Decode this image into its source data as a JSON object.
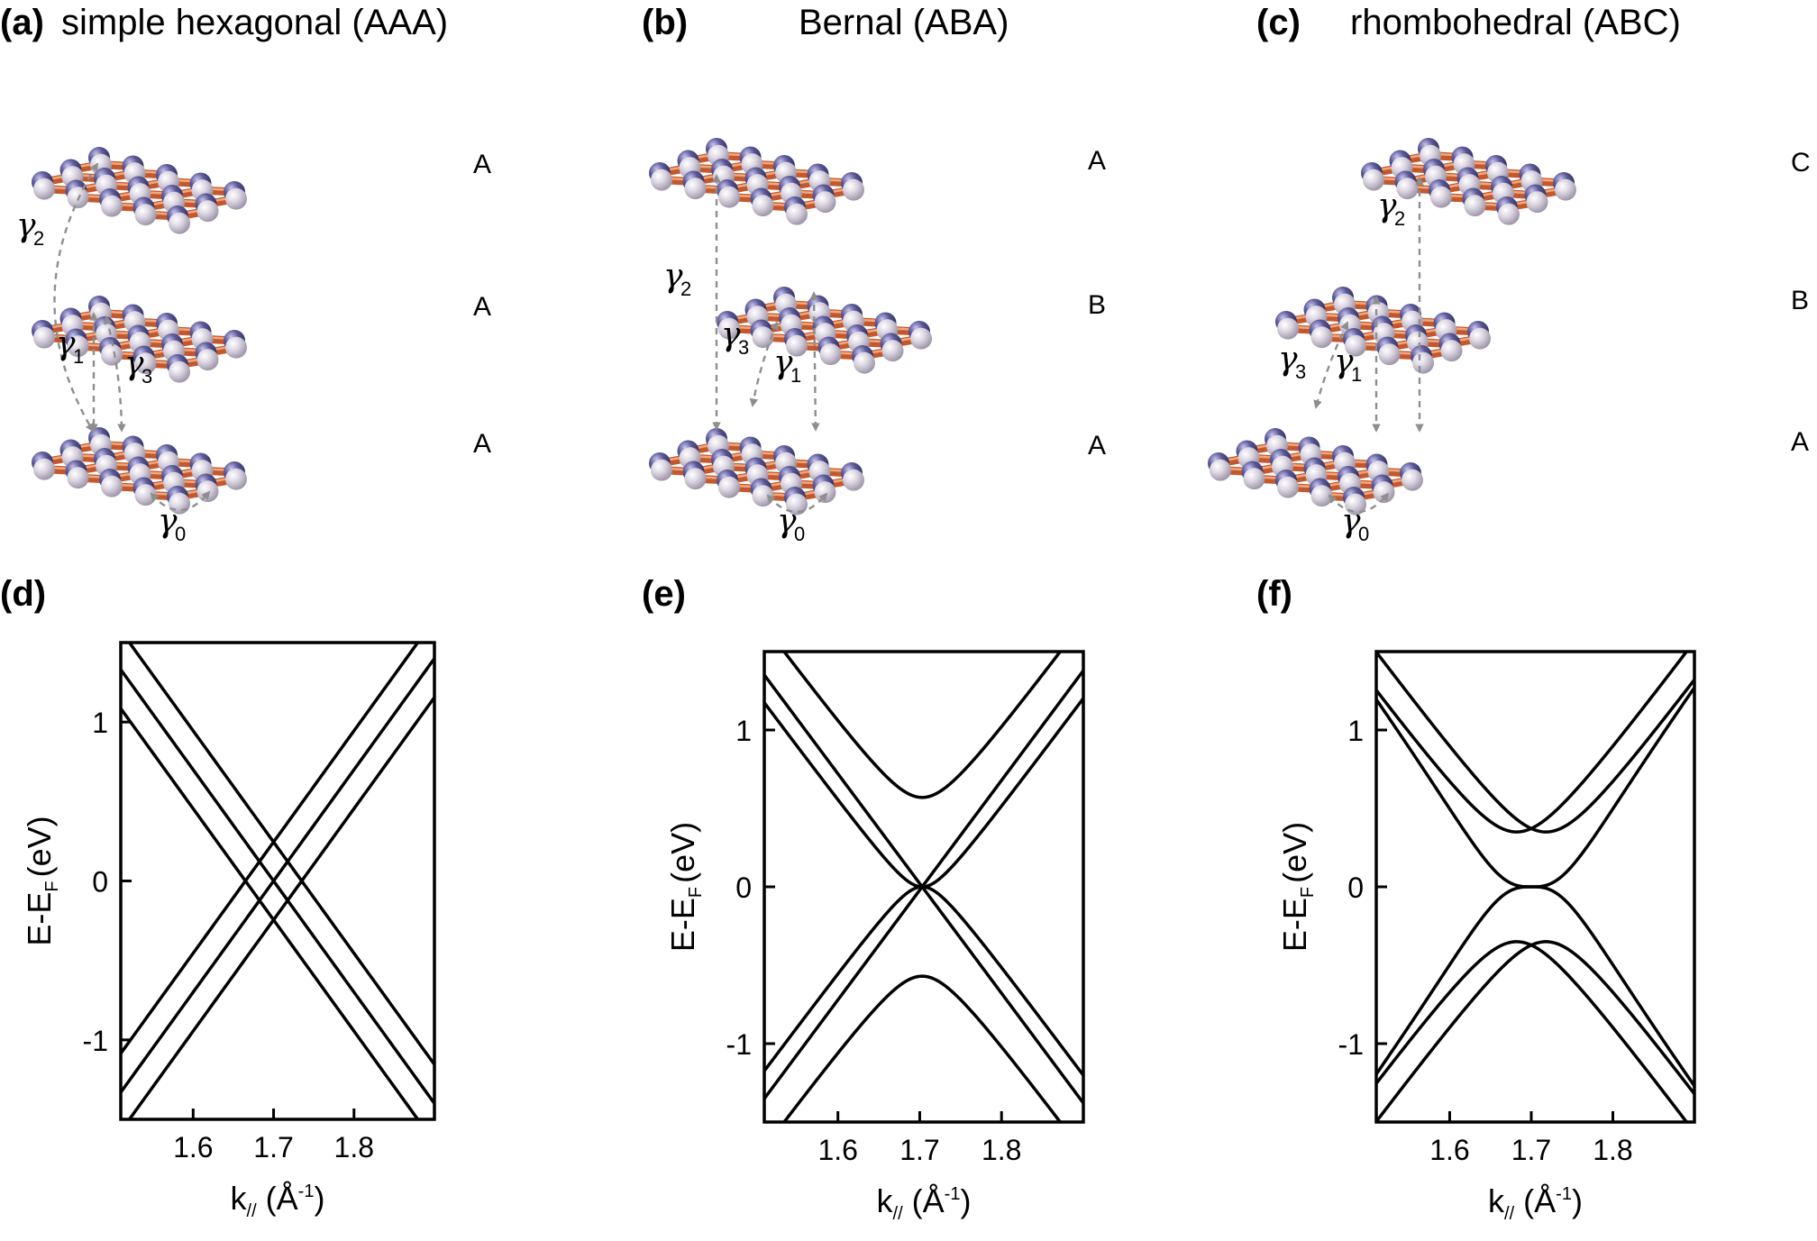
{
  "figure": {
    "panels": [
      {
        "id": "a",
        "label": "(a)",
        "title": "simple hexagonal (AAA)",
        "layers": [
          "A",
          "A",
          "A"
        ]
      },
      {
        "id": "b",
        "label": "(b)",
        "title": "Bernal (ABA)",
        "layers": [
          "A",
          "B",
          "A"
        ]
      },
      {
        "id": "c",
        "label": "(c)",
        "title": "rhombohedral (ABC)",
        "layers": [
          "C",
          "B",
          "A"
        ]
      },
      {
        "id": "d",
        "label": "(d)"
      },
      {
        "id": "e",
        "label": "(e)"
      },
      {
        "id": "f",
        "label": "(f)"
      }
    ],
    "hopping": {
      "symbol": "γ",
      "subscripts": [
        "0",
        "1",
        "2",
        "3"
      ]
    },
    "atom_colors": {
      "A_site": "#5b5a98",
      "B_site": "#dcd6e2",
      "bond": "#c4582c"
    }
  },
  "axis": {
    "ylabel_main": "E-E",
    "ylabel_sub": "F",
    "ylabel_unit": "(eV)",
    "xlabel_main": "k",
    "xlabel_sub": "//",
    "xlabel_unit_open": "(Å",
    "xlabel_unit_sup": "-1",
    "xlabel_unit_close": ")",
    "yticks": [
      "1",
      "0",
      "-1"
    ],
    "xticks": [
      "1.6",
      "1.7",
      "1.8"
    ]
  },
  "chart_data": [
    {
      "type": "line",
      "panel": "d",
      "stacking": "AAA",
      "xlim": [
        1.51,
        1.9
      ],
      "ylim": [
        -1.5,
        1.5
      ],
      "x_ticks": [
        1.6,
        1.7,
        1.8
      ],
      "y_ticks": [
        -1,
        0,
        1
      ],
      "grid": false,
      "series": [
        {
          "kind": "dirac",
          "k0": 1.665,
          "mass": 0,
          "slope": 7.0
        },
        {
          "kind": "dirac",
          "k0": 1.7,
          "mass": 0,
          "slope": 7.0
        },
        {
          "kind": "dirac",
          "k0": 1.735,
          "mass": 0,
          "slope": 7.0
        }
      ]
    },
    {
      "type": "line",
      "panel": "e",
      "stacking": "ABA",
      "xlim": [
        1.51,
        1.9
      ],
      "ylim": [
        -1.5,
        1.5
      ],
      "x_ticks": [
        1.6,
        1.7,
        1.8
      ],
      "y_ticks": [
        -1,
        0,
        1
      ],
      "grid": false,
      "series": [
        {
          "kind": "dirac",
          "k0": 1.703,
          "mass": 0,
          "slope": 7.0
        },
        {
          "kind": "bilayer",
          "k0": 1.703,
          "gap": 0,
          "slope": 7.0
        },
        {
          "kind": "bilayer",
          "k0": 1.703,
          "gap": 0.57,
          "slope": 7.0
        }
      ]
    },
    {
      "type": "line",
      "panel": "f",
      "stacking": "ABC",
      "xlim": [
        1.51,
        1.9
      ],
      "ylim": [
        -1.5,
        1.5
      ],
      "x_ticks": [
        1.6,
        1.7,
        1.8
      ],
      "y_ticks": [
        -1,
        0,
        1
      ],
      "grid": false,
      "series": [
        {
          "kind": "flat",
          "k0": 1.7,
          "dispersion": "cubic",
          "slope": 7.0
        },
        {
          "kind": "dirac",
          "k0": 1.682,
          "mass": 0.35,
          "slope": 7.0
        },
        {
          "kind": "dirac",
          "k0": 1.718,
          "mass": 0.35,
          "slope": 7.0
        }
      ]
    }
  ]
}
